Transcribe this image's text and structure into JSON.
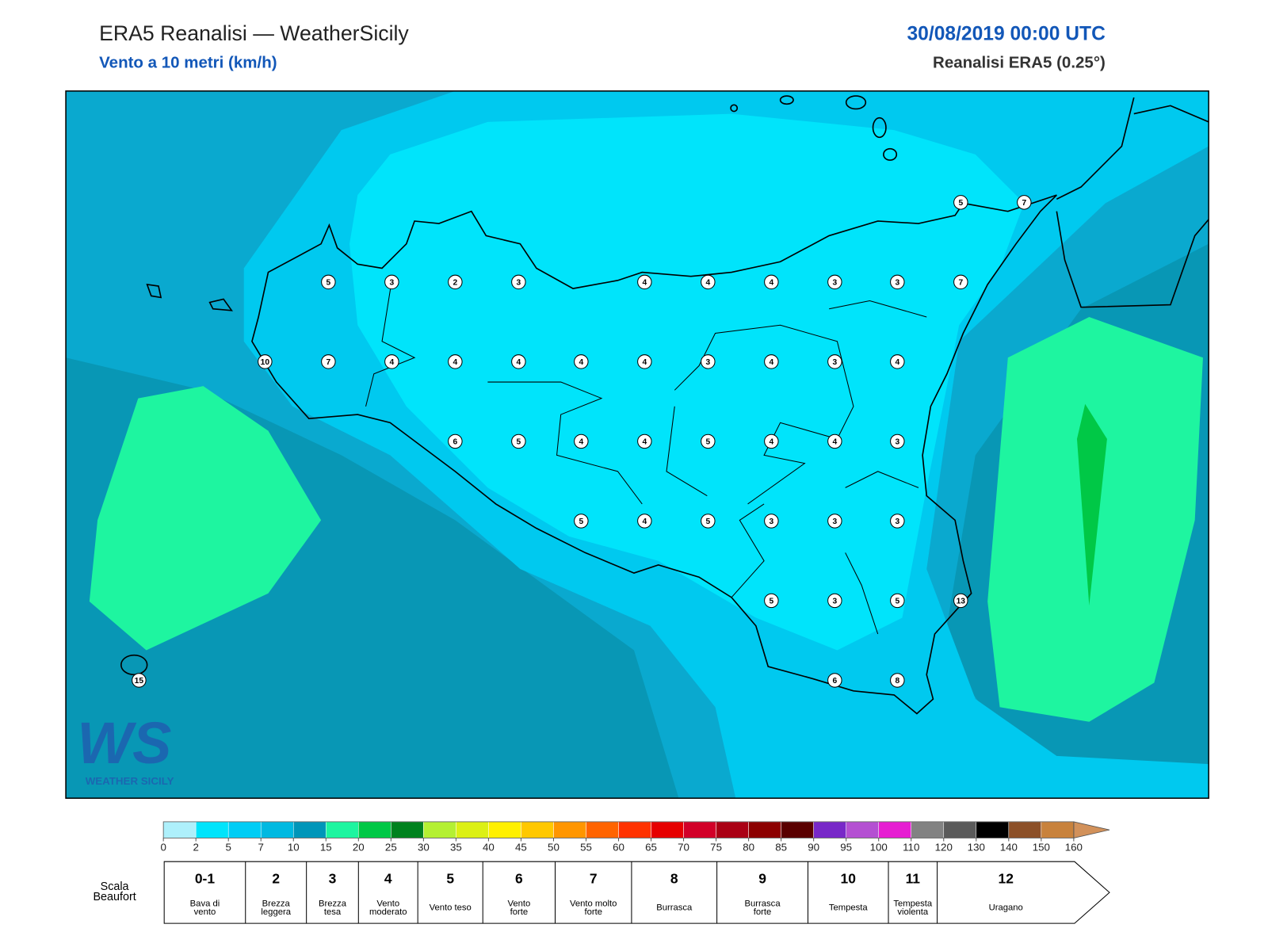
{
  "header": {
    "title": "ERA5 Reanalisi — WeatherSicily",
    "subtitle": "Vento a 10 metri (km/h)",
    "date": "30/08/2019 00:00 UTC",
    "source": "Reanalisi ERA5 (0.25°)"
  },
  "stations": {
    "values": [
      5,
      7,
      5,
      3,
      2,
      3,
      4,
      4,
      4,
      3,
      3,
      7,
      10,
      7,
      4,
      4,
      4,
      4,
      4,
      3,
      4,
      3,
      4,
      6,
      5,
      4,
      4,
      5,
      4,
      4,
      3,
      5,
      4,
      5,
      3,
      3,
      3,
      5,
      3,
      5,
      13,
      15,
      6,
      8
    ]
  },
  "logo": {
    "mark": "WS",
    "text": "WEATHER SICILY"
  },
  "colorbar": {
    "ticks": [
      0,
      2,
      5,
      7,
      10,
      15,
      20,
      25,
      30,
      35,
      40,
      45,
      50,
      55,
      60,
      65,
      70,
      75,
      80,
      85,
      90,
      95,
      100,
      110,
      120,
      130,
      140,
      150,
      160
    ],
    "colors": [
      "#aef0fb",
      "#00e4fb",
      "#00cdf5",
      "#00b9e1",
      "#0096b9",
      "#1ef5a0",
      "#00c846",
      "#00821e",
      "#b4f032",
      "#dcf014",
      "#fff000",
      "#ffc800",
      "#ff9600",
      "#ff6400",
      "#ff3200",
      "#e60000",
      "#d20028",
      "#aa0014",
      "#8c0000",
      "#5a0000",
      "#7828c8",
      "#b450d2",
      "#e61ed2",
      "#828282",
      "#5a5a5a",
      "#000000",
      "#8c5028",
      "#c8823c"
    ],
    "extend_color": "#d2915a"
  },
  "beaufort": {
    "label": [
      "Scala",
      "Beaufort"
    ],
    "classes": [
      {
        "force": "0-1",
        "description": [
          "Bava di",
          "vento"
        ]
      },
      {
        "force": 2,
        "description": [
          "Brezza",
          "leggera"
        ]
      },
      {
        "force": 3,
        "description": [
          "Brezza",
          "tesa"
        ]
      },
      {
        "force": 4,
        "description": [
          "Vento",
          "moderato"
        ]
      },
      {
        "force": 5,
        "description": [
          "Vento teso"
        ]
      },
      {
        "force": 6,
        "description": [
          "Vento",
          "forte"
        ]
      },
      {
        "force": 7,
        "description": [
          "Vento molto",
          "forte"
        ]
      },
      {
        "force": 8,
        "description": [
          "Burrasca"
        ]
      },
      {
        "force": 9,
        "description": [
          "Burrasca",
          "forte"
        ]
      },
      {
        "force": 10,
        "description": [
          "Tempesta"
        ]
      },
      {
        "force": 11,
        "description": [
          "Tempesta",
          "violenta"
        ]
      },
      {
        "force": 12,
        "description": [
          "Uragano"
        ]
      }
    ]
  }
}
